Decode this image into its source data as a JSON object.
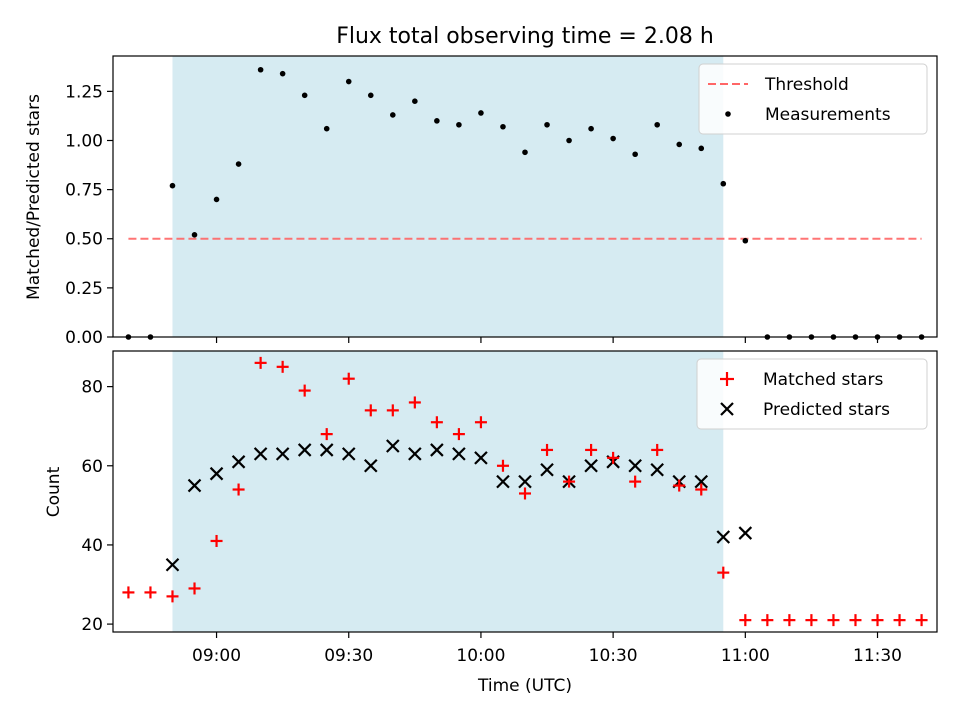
{
  "chart_data": [
    {
      "type": "scatter",
      "title": "Flux total observing time = 2.08 h",
      "xlabel": "",
      "ylabel": "Matched/Predicted stars",
      "ylim": [
        0.0,
        1.43
      ],
      "xlim": [
        "08:40",
        "11:40"
      ],
      "yticks": [
        "0.00",
        "0.25",
        "0.50",
        "0.75",
        "1.00",
        "1.25"
      ],
      "highlight_window": {
        "start": "08:50",
        "end": "10:55",
        "color": "#add8e6"
      },
      "threshold": {
        "name": "Threshold",
        "value": 0.5,
        "x_start": "08:40",
        "x_end": "11:40",
        "color": "#ff6666",
        "style": "dashed"
      },
      "legend": {
        "position": "top-right",
        "entries": [
          "Threshold",
          "Measurements"
        ]
      },
      "series": [
        {
          "name": "Measurements",
          "marker": "dot",
          "color": "#000000",
          "x": [
            "08:40",
            "08:45",
            "08:50",
            "08:55",
            "09:00",
            "09:05",
            "09:10",
            "09:15",
            "09:20",
            "09:25",
            "09:30",
            "09:35",
            "09:40",
            "09:45",
            "09:50",
            "09:55",
            "10:00",
            "10:05",
            "10:10",
            "10:15",
            "10:20",
            "10:25",
            "10:30",
            "10:35",
            "10:40",
            "10:45",
            "10:50",
            "10:55",
            "11:00",
            "11:05",
            "11:10",
            "11:15",
            "11:20",
            "11:25",
            "11:30",
            "11:35",
            "11:40"
          ],
          "values": [
            0.0,
            0.0,
            0.77,
            0.52,
            0.7,
            0.88,
            1.36,
            1.34,
            1.23,
            1.06,
            1.3,
            1.23,
            1.13,
            1.2,
            1.1,
            1.08,
            1.14,
            1.07,
            0.94,
            1.08,
            1.0,
            1.06,
            1.01,
            0.93,
            1.08,
            0.98,
            0.96,
            0.78,
            0.49,
            0.0,
            0.0,
            0.0,
            0.0,
            0.0,
            0.0,
            0.0,
            0.0
          ]
        }
      ]
    },
    {
      "type": "scatter",
      "title": "",
      "xlabel": "Time (UTC)",
      "ylabel": "Count",
      "ylim": [
        18,
        89
      ],
      "xlim": [
        "08:40",
        "11:40"
      ],
      "yticks": [
        "20",
        "40",
        "60",
        "80"
      ],
      "xticks": [
        "09:00",
        "09:30",
        "10:00",
        "10:30",
        "11:00",
        "11:30"
      ],
      "highlight_window": {
        "start": "08:50",
        "end": "10:55",
        "color": "#add8e6"
      },
      "legend": {
        "position": "top-right",
        "entries": [
          "Matched stars",
          "Predicted stars"
        ]
      },
      "series": [
        {
          "name": "Matched stars",
          "marker": "plus",
          "color": "#ff0000",
          "x": [
            "08:40",
            "08:45",
            "08:50",
            "08:55",
            "09:00",
            "09:05",
            "09:10",
            "09:15",
            "09:20",
            "09:25",
            "09:30",
            "09:35",
            "09:40",
            "09:45",
            "09:50",
            "09:55",
            "10:00",
            "10:05",
            "10:10",
            "10:15",
            "10:20",
            "10:25",
            "10:30",
            "10:35",
            "10:40",
            "10:45",
            "10:50",
            "10:55",
            "11:00",
            "11:05",
            "11:10",
            "11:15",
            "11:20",
            "11:25",
            "11:30",
            "11:35",
            "11:40"
          ],
          "values": [
            28,
            28,
            27,
            29,
            41,
            54,
            86,
            85,
            79,
            68,
            82,
            74,
            74,
            76,
            71,
            68,
            71,
            60,
            53,
            64,
            56,
            64,
            62,
            56,
            64,
            55,
            54,
            33,
            21,
            21,
            21,
            21,
            21,
            21,
            21,
            21,
            21
          ]
        },
        {
          "name": "Predicted stars",
          "marker": "x",
          "color": "#000000",
          "x": [
            "08:50",
            "08:55",
            "09:00",
            "09:05",
            "09:10",
            "09:15",
            "09:20",
            "09:25",
            "09:30",
            "09:35",
            "09:40",
            "09:45",
            "09:50",
            "09:55",
            "10:00",
            "10:05",
            "10:10",
            "10:15",
            "10:20",
            "10:25",
            "10:30",
            "10:35",
            "10:40",
            "10:45",
            "10:50",
            "10:55",
            "11:00"
          ],
          "values": [
            35,
            55,
            58,
            61,
            63,
            63,
            64,
            64,
            63,
            60,
            65,
            63,
            64,
            63,
            62,
            56,
            56,
            59,
            56,
            60,
            61,
            60,
            59,
            56,
            56,
            42,
            43
          ]
        }
      ]
    }
  ]
}
